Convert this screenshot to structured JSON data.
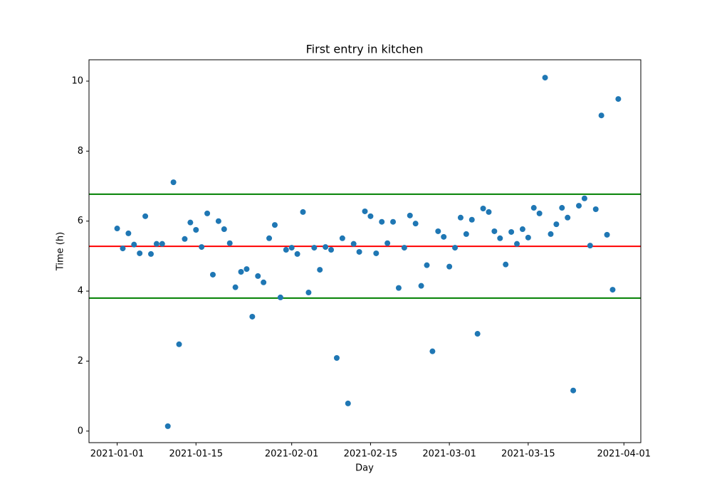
{
  "chart_data": {
    "type": "scatter",
    "title": "First entry in kitchen",
    "x_label": "Day",
    "y_label": "Time (h)",
    "color": "#1f77b4",
    "x": [
      "2021-01-01",
      "2021-01-02",
      "2021-01-03",
      "2021-01-04",
      "2021-01-05",
      "2021-01-06",
      "2021-01-07",
      "2021-01-08",
      "2021-01-09",
      "2021-01-10",
      "2021-01-11",
      "2021-01-12",
      "2021-01-13",
      "2021-01-14",
      "2021-01-15",
      "2021-01-16",
      "2021-01-17",
      "2021-01-18",
      "2021-01-19",
      "2021-01-20",
      "2021-01-21",
      "2021-01-22",
      "2021-01-23",
      "2021-01-24",
      "2021-01-25",
      "2021-01-26",
      "2021-01-27",
      "2021-01-28",
      "2021-01-29",
      "2021-01-30",
      "2021-01-31",
      "2021-02-01",
      "2021-02-02",
      "2021-02-03",
      "2021-02-04",
      "2021-02-05",
      "2021-02-06",
      "2021-02-07",
      "2021-02-08",
      "2021-02-09",
      "2021-02-10",
      "2021-02-11",
      "2021-02-12",
      "2021-02-13",
      "2021-02-14",
      "2021-02-15",
      "2021-02-16",
      "2021-02-17",
      "2021-02-18",
      "2021-02-19",
      "2021-02-20",
      "2021-02-21",
      "2021-02-22",
      "2021-02-23",
      "2021-02-24",
      "2021-02-25",
      "2021-02-26",
      "2021-02-27",
      "2021-02-28",
      "2021-03-01",
      "2021-03-02",
      "2021-03-03",
      "2021-03-04",
      "2021-03-05",
      "2021-03-06",
      "2021-03-07",
      "2021-03-08",
      "2021-03-09",
      "2021-03-10",
      "2021-03-11",
      "2021-03-12",
      "2021-03-13",
      "2021-03-14",
      "2021-03-15",
      "2021-03-16",
      "2021-03-17",
      "2021-03-18",
      "2021-03-19",
      "2021-03-20",
      "2021-03-21",
      "2021-03-22",
      "2021-03-23",
      "2021-03-24",
      "2021-03-25",
      "2021-03-26",
      "2021-03-27",
      "2021-03-28",
      "2021-03-29",
      "2021-03-30",
      "2021-03-31"
    ],
    "values": [
      5.79,
      5.22,
      5.65,
      5.33,
      5.08,
      6.14,
      5.06,
      5.35,
      5.35,
      0.14,
      7.11,
      2.48,
      5.49,
      5.96,
      5.75,
      5.26,
      6.22,
      4.47,
      6.0,
      5.77,
      5.37,
      4.11,
      4.55,
      4.63,
      3.27,
      4.43,
      4.25,
      5.51,
      5.89,
      3.82,
      5.18,
      5.24,
      5.06,
      6.26,
      3.96,
      5.24,
      4.61,
      5.26,
      5.18,
      2.09,
      5.51,
      0.79,
      5.35,
      5.12,
      6.28,
      6.14,
      5.08,
      5.98,
      5.37,
      5.98,
      4.09,
      5.24,
      6.16,
      5.93,
      4.15,
      4.74,
      2.28,
      5.71,
      5.55,
      4.7,
      5.24,
      6.1,
      5.63,
      6.04,
      2.78,
      6.36,
      6.26,
      5.71,
      5.51,
      4.76,
      5.69,
      5.35,
      5.77,
      5.53,
      6.38,
      6.22,
      10.1,
      5.63,
      5.91,
      6.38,
      6.1,
      1.16,
      6.44,
      6.65,
      5.3,
      6.34,
      9.02,
      5.61,
      4.04,
      9.49
    ],
    "hlines": [
      {
        "value": 6.77,
        "color": "#008000"
      },
      {
        "value": 5.28,
        "color": "#ff0000"
      },
      {
        "value": 3.8,
        "color": "#008000"
      }
    ],
    "xlim": [
      "2020-12-27",
      "2021-04-04"
    ],
    "xticks": [
      "2021-01-01",
      "2021-01-15",
      "2021-02-01",
      "2021-02-15",
      "2021-03-01",
      "2021-03-15",
      "2021-04-01"
    ],
    "ylim": [
      -0.33,
      10.61
    ],
    "yticks": [
      0,
      2,
      4,
      6,
      8,
      10
    ]
  }
}
